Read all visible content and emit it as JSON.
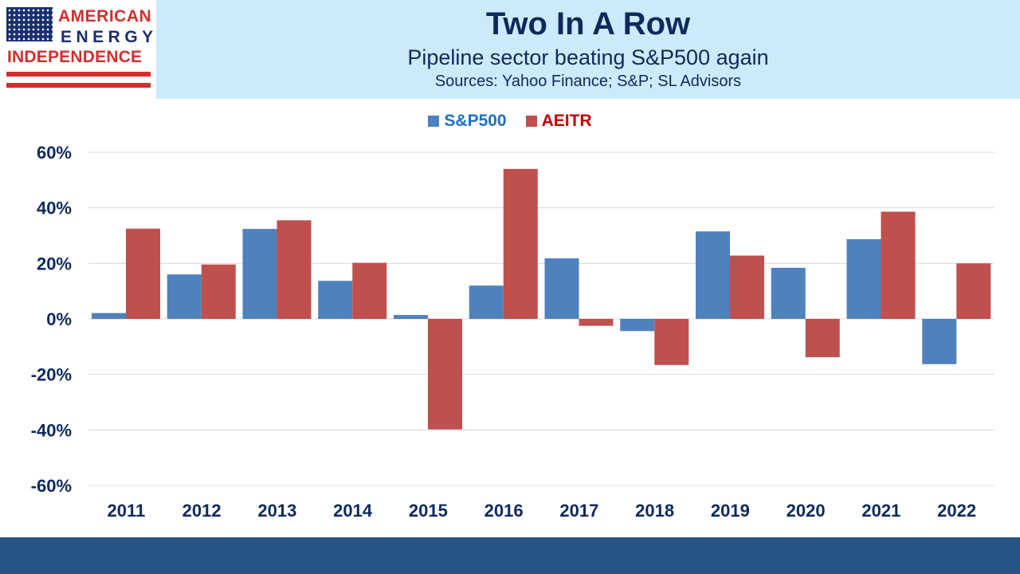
{
  "logo": {
    "line1": "AMERICAN",
    "line2": "ENERGY",
    "line3": "INDEPENDENCE"
  },
  "header": {
    "title": "Two In A Row",
    "subtitle": "Pipeline sector beating S&P500 again",
    "sources": "Sources: Yahoo Finance; S&P; SL Advisors"
  },
  "colors": {
    "sp500": "#4f81bd",
    "aeitr": "#c0504d",
    "sp500_legend_text": "#1f6fbf",
    "aeitr_legend_text": "#c00000",
    "banner": "#cdeafb",
    "footer": "#275583"
  },
  "chart_data": {
    "type": "bar",
    "categories": [
      "2011",
      "2012",
      "2013",
      "2014",
      "2015",
      "2016",
      "2017",
      "2018",
      "2019",
      "2020",
      "2021",
      "2022"
    ],
    "series": [
      {
        "name": "S&P500",
        "values": [
          2.1,
          16.0,
          32.4,
          13.7,
          1.4,
          12.0,
          21.8,
          -4.4,
          31.5,
          18.4,
          28.7,
          -16.3
        ]
      },
      {
        "name": "AEITR",
        "values": [
          32.5,
          19.6,
          35.5,
          20.2,
          -39.8,
          54.0,
          -2.5,
          -16.6,
          22.8,
          -13.8,
          38.6,
          20.0
        ]
      }
    ],
    "ylim": [
      -60,
      60
    ],
    "yticks": [
      -60,
      -40,
      -20,
      0,
      20,
      40,
      60
    ],
    "ytick_labels": [
      "-60%",
      "-40%",
      "-20%",
      "0%",
      "20%",
      "40%",
      "60%"
    ],
    "grid": true,
    "legend_position": "top-center"
  }
}
